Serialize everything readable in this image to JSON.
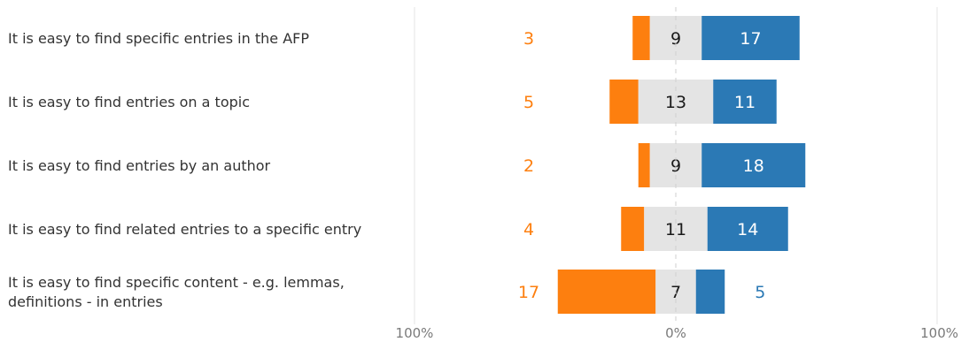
{
  "chart_data": {
    "type": "bar",
    "orientation": "horizontal",
    "stacked": "diverging",
    "categories": [
      "It is easy to find specific entries in the AFP",
      "It is easy to find entries on a topic",
      "It is easy to find entries by an author",
      "It is easy to find related entries to a specific entry",
      "It is easy to find specific content - e.g. lemmas, definitions - in entries"
    ],
    "series": [
      {
        "values": [
          3,
          5,
          2,
          4,
          17
        ]
      },
      {
        "values": [
          9,
          13,
          9,
          11,
          7
        ]
      },
      {
        "values": [
          17,
          11,
          18,
          14,
          5
        ]
      }
    ],
    "colors": [
      "#fd7f0f",
      "#e4e4e4",
      "#2b79b5"
    ],
    "label_colors": [
      "#fd7f0f",
      "#1a1a1a",
      "#ffffff"
    ],
    "x_ticks": [
      "100%",
      "0%",
      "100%"
    ],
    "xlim": [
      -100,
      100
    ],
    "center_line": "dashed",
    "grid": false,
    "legend": "none"
  }
}
